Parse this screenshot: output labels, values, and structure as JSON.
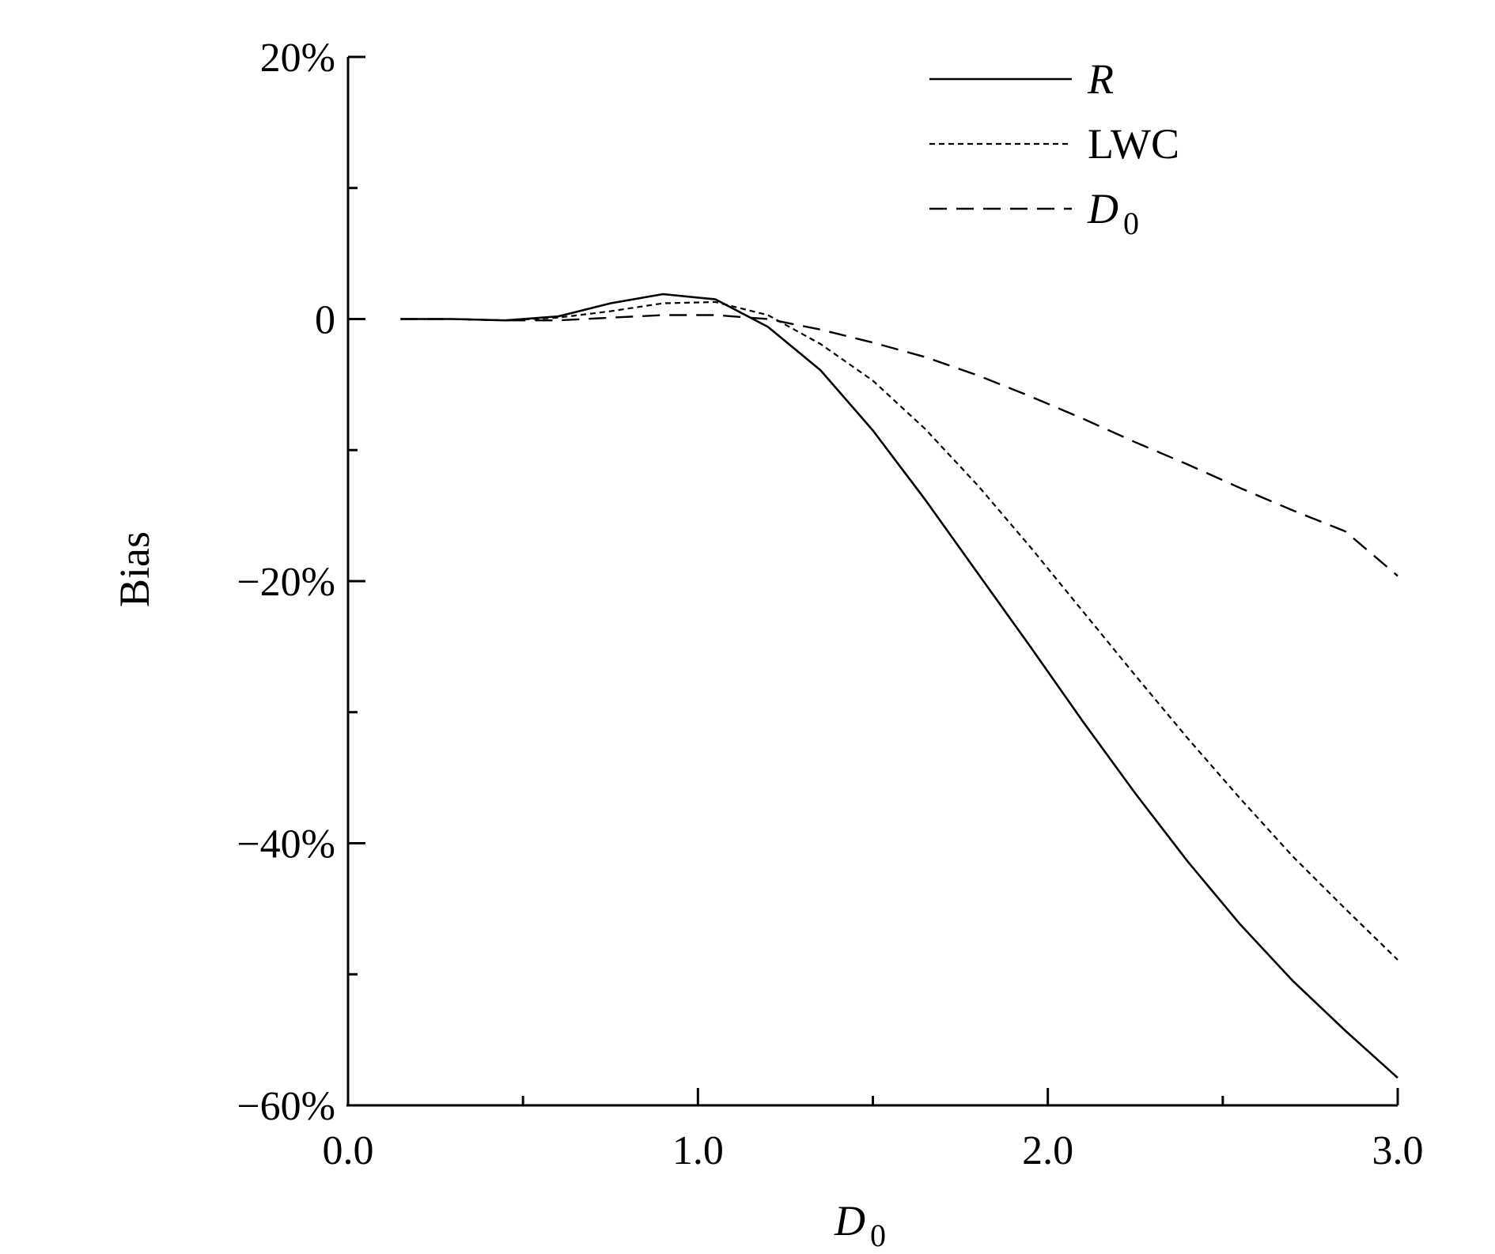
{
  "chart_data": {
    "type": "line",
    "xlabel": "D",
    "xlabel_sub": "0",
    "ylabel": "Bias",
    "xlim": [
      0.0,
      3.0
    ],
    "ylim": [
      -60,
      20
    ],
    "x_ticks": [
      "0.0",
      "1.0",
      "2.0",
      "3.0"
    ],
    "y_ticks": [
      "20%",
      "0",
      "−20%",
      "−40%",
      "−60%"
    ],
    "grid": false,
    "legend_position": "top-right",
    "series": [
      {
        "name": "R",
        "legend_italic": true,
        "style": "solid",
        "x": [
          0.15,
          0.3,
          0.45,
          0.6,
          0.75,
          0.9,
          1.05,
          1.2,
          1.35,
          1.5,
          1.65,
          1.8,
          1.95,
          2.1,
          2.25,
          2.4,
          2.55,
          2.7,
          2.85,
          3.0
        ],
        "y": [
          0,
          0,
          -0.1,
          0.2,
          1.2,
          1.9,
          1.5,
          -0.6,
          -3.9,
          -8.5,
          -13.8,
          -19.4,
          -25.0,
          -30.7,
          -36.2,
          -41.4,
          -46.2,
          -50.5,
          -54.3,
          -57.9
        ]
      },
      {
        "name": "LWC",
        "legend_italic": false,
        "style": "dotted",
        "x": [
          0.15,
          0.3,
          0.45,
          0.6,
          0.75,
          0.9,
          1.05,
          1.2,
          1.35,
          1.5,
          1.65,
          1.8,
          1.95,
          2.1,
          2.25,
          2.4,
          2.55,
          2.7,
          2.85,
          3.0
        ],
        "y": [
          0,
          0,
          -0.1,
          0.1,
          0.6,
          1.2,
          1.3,
          0.3,
          -1.9,
          -4.7,
          -8.4,
          -12.7,
          -17.4,
          -22.3,
          -27.2,
          -32.0,
          -36.6,
          -41.0,
          -45.0,
          -48.9
        ]
      },
      {
        "name": "D",
        "name_sub": "0",
        "legend_italic": true,
        "style": "dashed",
        "x": [
          0.15,
          0.3,
          0.45,
          0.6,
          0.75,
          0.9,
          1.05,
          1.2,
          1.35,
          1.5,
          1.65,
          1.8,
          1.95,
          2.1,
          2.25,
          2.4,
          2.55,
          2.7,
          2.85,
          3.0
        ],
        "y": [
          0,
          0,
          -0.1,
          -0.1,
          0.1,
          0.3,
          0.3,
          0,
          -0.8,
          -1.8,
          -2.9,
          -4.3,
          -5.9,
          -7.6,
          -9.4,
          -11.1,
          -12.9,
          -14.6,
          -16.2,
          -19.6
        ]
      }
    ]
  }
}
